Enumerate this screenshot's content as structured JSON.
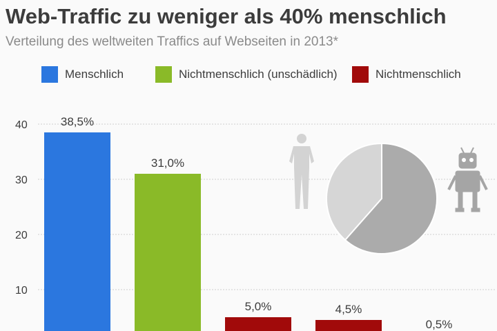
{
  "chart_data": {
    "type": "bar",
    "title": "Web-Traffic zu weniger als 40% menschlich",
    "subtitle": "Verteilung des weltweiten Traffics auf Webseiten in 2013*",
    "legend": [
      {
        "name": "Menschlich",
        "color": "#2b77df"
      },
      {
        "name": "Nichtmenschlich (unschädlich)",
        "color": "#8aba28"
      },
      {
        "name": "Nichtmenschlich",
        "color": "#a10a0a"
      }
    ],
    "values": [
      38.5,
      31.0,
      5.0,
      4.5,
      0.5
    ],
    "labels": [
      "38,5%",
      "31,0%",
      "5,0%",
      "4,5%",
      "0,5%"
    ],
    "bar_colors": [
      "#2b77df",
      "#8aba28",
      "#a10a0a",
      "#a10a0a",
      "#a10a0a"
    ],
    "yticks": [
      10,
      20,
      30,
      40
    ],
    "ylim": [
      0,
      40
    ],
    "grid": true,
    "legend_position": "top",
    "inset_pie": {
      "values": [
        38.5,
        61.5
      ],
      "colors": [
        "#d6d6d6",
        "#ababab"
      ]
    },
    "icons": [
      "person-silhouette-icon",
      "robot-icon"
    ]
  }
}
